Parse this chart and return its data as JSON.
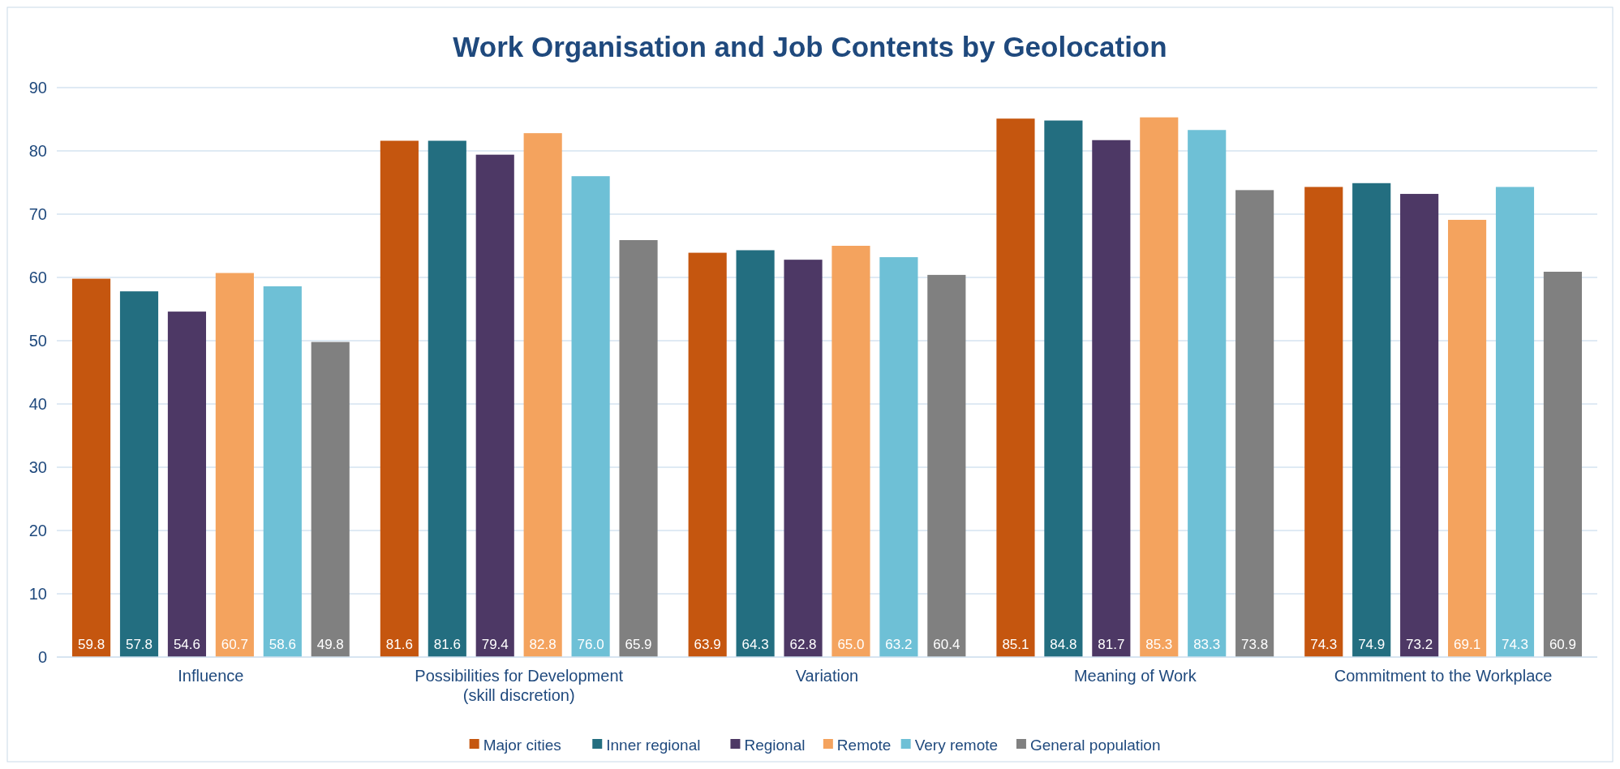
{
  "chart_data": {
    "type": "bar",
    "title": "Work Organisation and Job Contents by Geolocation",
    "categories": [
      "Influence",
      "Possibilities for Development (skill discretion)",
      "Variation",
      "Meaning of Work",
      "Commitment to the Workplace"
    ],
    "series": [
      {
        "name": "Major cities",
        "color": "#c5560f",
        "values": [
          59.8,
          81.6,
          63.9,
          85.1,
          74.3
        ],
        "value_labels": [
          "59.8",
          "81.6",
          "63.9",
          "85.1",
          "74.3"
        ]
      },
      {
        "name": "Inner regional",
        "color": "#236e80",
        "values": [
          57.8,
          81.6,
          64.3,
          84.8,
          74.9
        ],
        "value_labels": [
          "57.8",
          "81.6",
          "64.3",
          "84.8",
          "74.9"
        ]
      },
      {
        "name": "Regional",
        "color": "#4d3865",
        "values": [
          54.6,
          79.4,
          62.8,
          81.7,
          73.2
        ],
        "value_labels": [
          "54.6",
          "79.4",
          "62.8",
          "81.7",
          "73.2"
        ]
      },
      {
        "name": "Remote",
        "color": "#f4a35e",
        "values": [
          60.7,
          82.8,
          65.0,
          85.3,
          69.1
        ],
        "value_labels": [
          "60.7",
          "82.8",
          "65.0",
          "85.3",
          "69.1"
        ]
      },
      {
        "name": "Very remote",
        "color": "#6ec0d6",
        "values": [
          58.6,
          76.0,
          63.2,
          83.3,
          74.3
        ],
        "value_labels": [
          "58.6",
          "76.0",
          "63.2",
          "83.3",
          "74.3"
        ]
      },
      {
        "name": "General population",
        "color": "#808080",
        "values": [
          49.8,
          65.9,
          60.4,
          73.8,
          60.9
        ],
        "value_labels": [
          "49.8",
          "65.9",
          "60.4",
          "73.8",
          "60.9"
        ]
      }
    ],
    "ylim": [
      0,
      90
    ],
    "yticks": [
      0,
      10,
      20,
      30,
      40,
      50,
      60,
      70,
      80,
      90
    ],
    "grid": "y",
    "legend": "bottom"
  }
}
